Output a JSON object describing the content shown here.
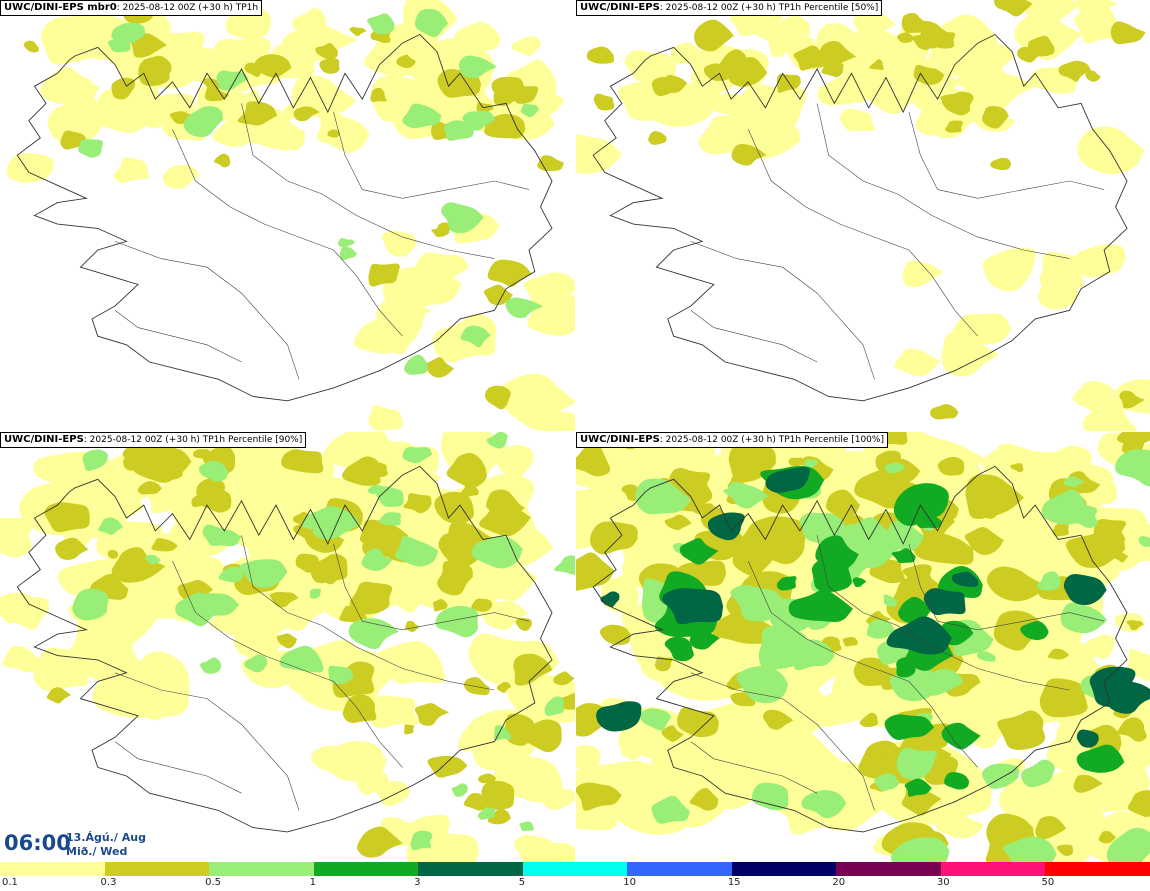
{
  "panels": [
    {
      "model": "UWC/DINI-EPS mbr0",
      "info": ": 2025-08-12 00Z (+30 h) TP1h",
      "coverage": 0.18,
      "intensity": 0.55,
      "seed": 11
    },
    {
      "model": "UWC/DINI-EPS",
      "info": ": 2025-08-12 00Z (+30 h) TP1h Percentile [50%]",
      "coverage": 0.14,
      "intensity": 0.3,
      "seed": 23
    },
    {
      "model": "UWC/DINI-EPS",
      "info": ": 2025-08-12 00Z (+30 h) TP1h Percentile [90%]",
      "coverage": 0.5,
      "intensity": 0.5,
      "seed": 37
    },
    {
      "model": "UWC/DINI-EPS",
      "info": ": 2025-08-12 00Z (+30 h) TP1h Percentile [100%]",
      "coverage": 0.85,
      "intensity": 1.0,
      "seed": 53
    }
  ],
  "valid_time": {
    "time": "06:00",
    "date_line1": "13.Ágú./ Aug",
    "date_line2": "Mið./ Wed"
  },
  "colorbar": {
    "labels": [
      "0.1",
      "0.3",
      "0.5",
      "1",
      "3",
      "5",
      "10",
      "15",
      "20",
      "30",
      "50"
    ],
    "colors": [
      "#ffff99",
      "#cccc22",
      "#99ee77",
      "#11aa22",
      "#006644",
      "#00ffee",
      "#3366ff",
      "#000066",
      "#770055",
      "#ff1177",
      "#ff0000"
    ]
  }
}
